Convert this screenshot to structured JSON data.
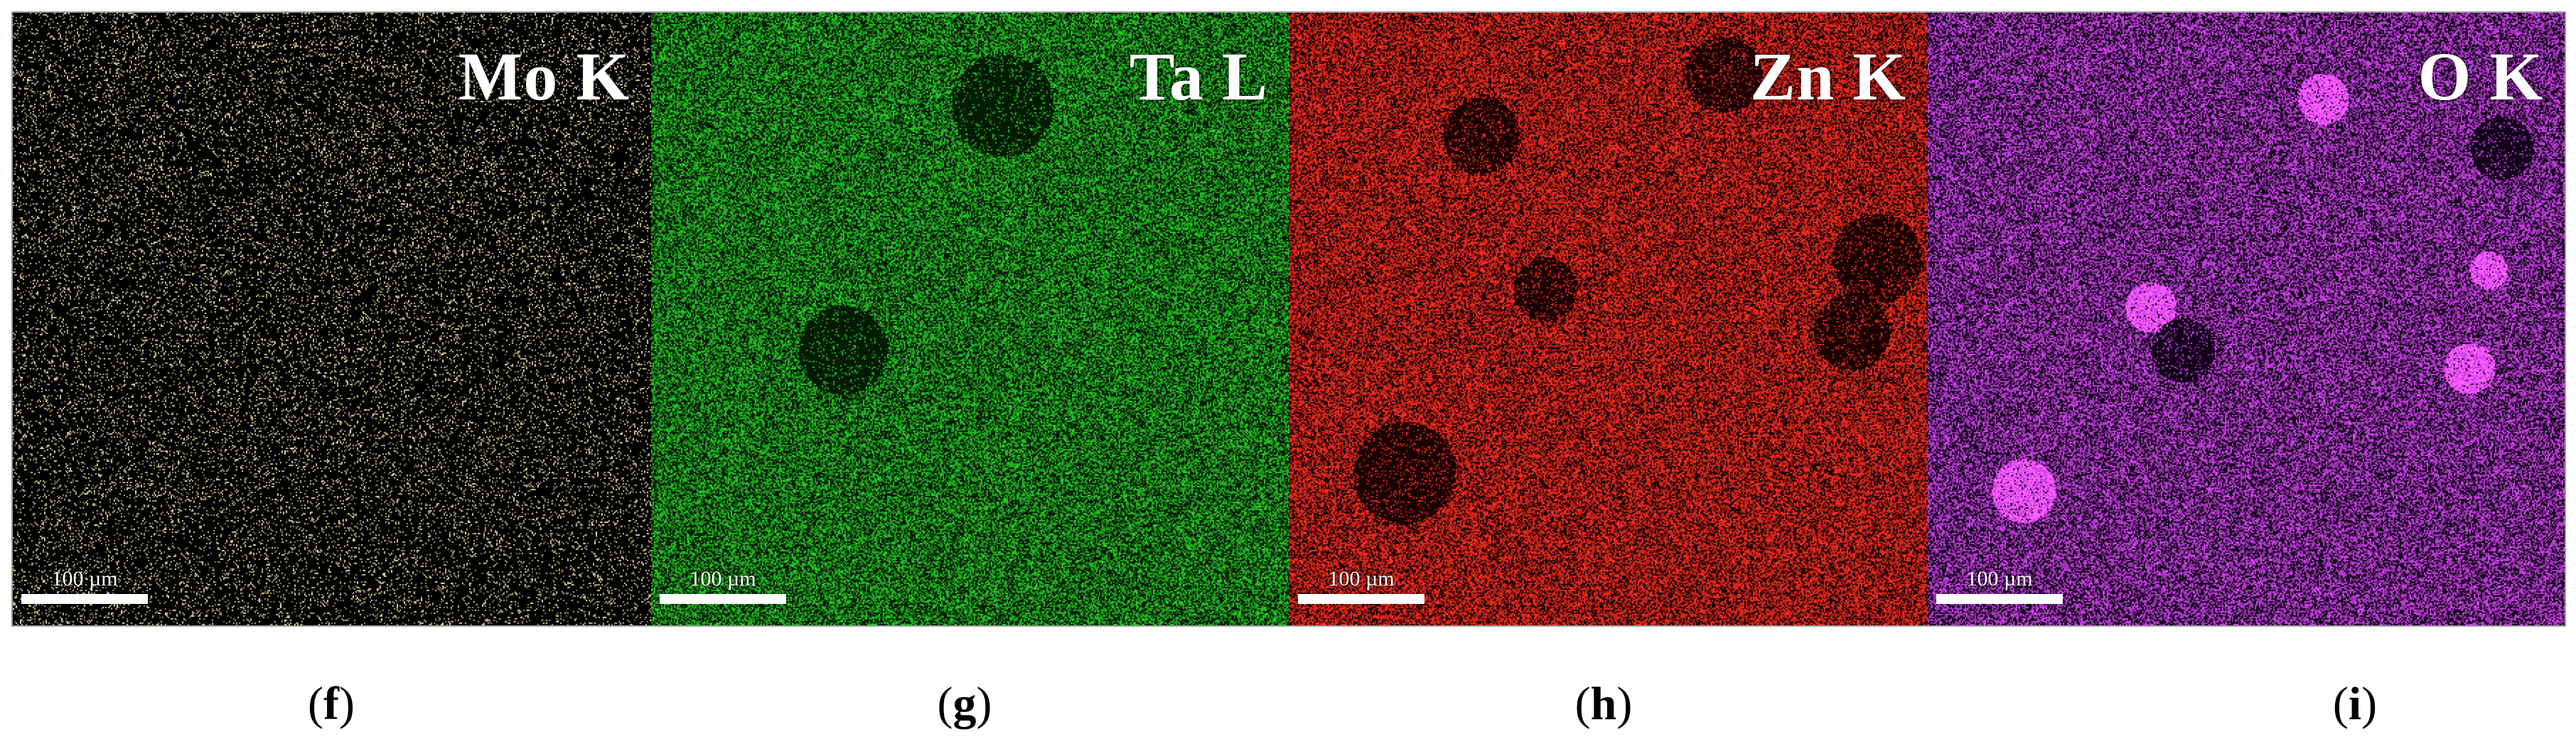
{
  "panels": [
    {
      "element": "Mo K",
      "scale": "100 µm",
      "caption_letter": "f",
      "map_color": "#d8cf9c",
      "density": 0.14,
      "background": "#000000"
    },
    {
      "element": "Ta L",
      "scale": "100 µm",
      "caption_letter": "g",
      "map_color": "#22c022",
      "density": 0.55,
      "background": "#031a03"
    },
    {
      "element": "Zn K",
      "scale": "100 µm",
      "caption_letter": "h",
      "map_color": "#f02a1e",
      "density": 0.62,
      "background": "#1a0202"
    },
    {
      "element": "O K",
      "scale": "100 µm",
      "caption_letter": "i",
      "map_color": "#c43fe0",
      "density": 0.58,
      "background": "#12021a"
    }
  ]
}
